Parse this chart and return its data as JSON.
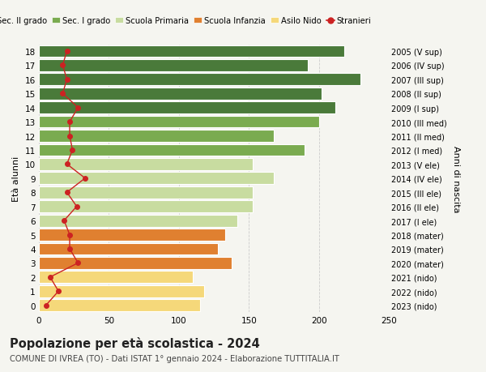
{
  "ages": [
    0,
    1,
    2,
    3,
    4,
    5,
    6,
    7,
    8,
    9,
    10,
    11,
    12,
    13,
    14,
    15,
    16,
    17,
    18
  ],
  "right_labels": [
    "2023 (nido)",
    "2022 (nido)",
    "2021 (nido)",
    "2020 (mater)",
    "2019 (mater)",
    "2018 (mater)",
    "2017 (I ele)",
    "2016 (II ele)",
    "2015 (III ele)",
    "2014 (IV ele)",
    "2013 (V ele)",
    "2012 (I med)",
    "2011 (II med)",
    "2010 (III med)",
    "2009 (I sup)",
    "2008 (II sup)",
    "2007 (III sup)",
    "2006 (IV sup)",
    "2005 (V sup)"
  ],
  "bar_values": [
    115,
    118,
    110,
    138,
    128,
    133,
    142,
    153,
    153,
    168,
    153,
    190,
    168,
    200,
    212,
    202,
    230,
    192,
    218
  ],
  "bar_colors": [
    "#f5d87a",
    "#f5d87a",
    "#f5d87a",
    "#e08030",
    "#e08030",
    "#e08030",
    "#c8dca0",
    "#c8dca0",
    "#c8dca0",
    "#c8dca0",
    "#c8dca0",
    "#7aab50",
    "#7aab50",
    "#7aab50",
    "#4a7a3a",
    "#4a7a3a",
    "#4a7a3a",
    "#4a7a3a",
    "#4a7a3a"
  ],
  "stranieri_values": [
    5,
    14,
    8,
    28,
    22,
    22,
    18,
    27,
    20,
    33,
    20,
    24,
    22,
    22,
    28,
    17,
    20,
    17,
    20
  ],
  "xlim": [
    0,
    250
  ],
  "xlabel_ticks": [
    0,
    50,
    100,
    150,
    200,
    250
  ],
  "ylabel": "Età alunni",
  "right_ylabel": "Anni di nascita",
  "legend_labels": [
    "Sec. II grado",
    "Sec. I grado",
    "Scuola Primaria",
    "Scuola Infanzia",
    "Asilo Nido",
    "Stranieri"
  ],
  "legend_colors": [
    "#4a7a3a",
    "#7aab50",
    "#c8dca0",
    "#e08030",
    "#f5d87a",
    "#cc2222"
  ],
  "title": "Popolazione per età scolastica - 2024",
  "subtitle": "COMUNE DI IVREA (TO) - Dati ISTAT 1° gennaio 2024 - Elaborazione TUTTITALIA.IT",
  "bg_color": "#f5f5f0",
  "bar_edge_color": "#ffffff",
  "grid_color": "#cccccc"
}
